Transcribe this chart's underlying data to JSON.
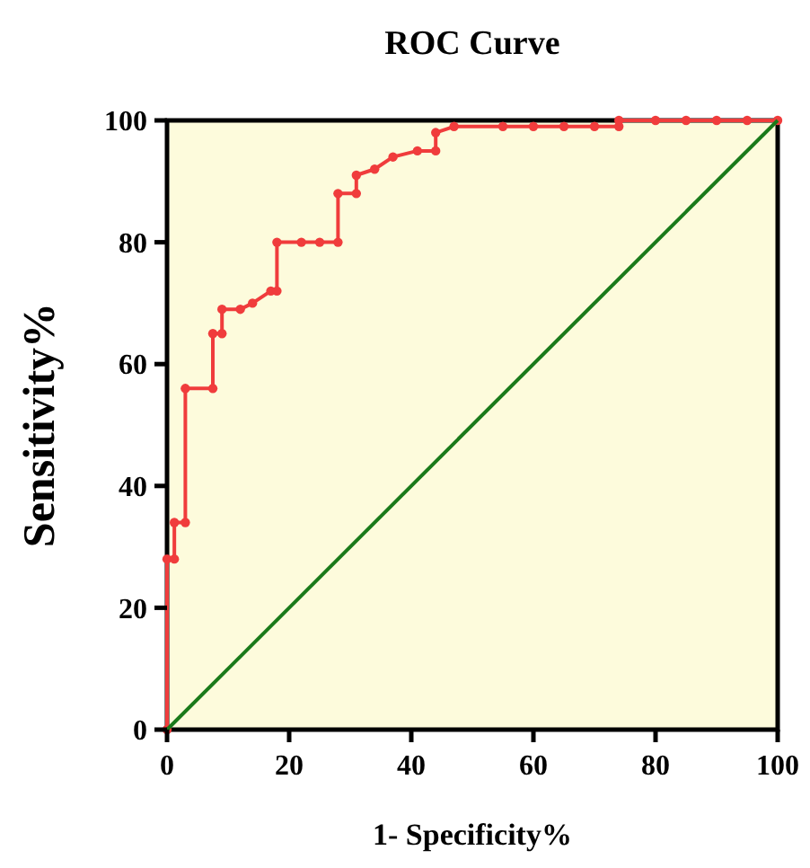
{
  "chart_data": {
    "type": "line",
    "title": "ROC Curve",
    "xlabel": "1- Specificity%",
    "ylabel": "Sensitivity%",
    "xlim": [
      0,
      100
    ],
    "ylim": [
      0,
      100
    ],
    "xticks": [
      0,
      20,
      40,
      60,
      80,
      100
    ],
    "yticks": [
      0,
      20,
      40,
      60,
      80,
      100
    ],
    "grid": false,
    "series": [
      {
        "color": "#f03c3c",
        "marker": "circle",
        "x": [
          0,
          0,
          1.2,
          1.2,
          3,
          3,
          7.5,
          7.5,
          9,
          9,
          12,
          14,
          17,
          18,
          18,
          22,
          25,
          28,
          28,
          31,
          31,
          34,
          37,
          41,
          44,
          44,
          47,
          55,
          60,
          65,
          70,
          74,
          74,
          80,
          85,
          90,
          95,
          100
        ],
        "values": [
          0,
          28,
          28,
          34,
          34,
          56,
          56,
          65,
          65,
          69,
          69,
          70,
          72,
          72,
          80,
          80,
          80,
          80,
          88,
          88,
          91,
          92,
          94,
          95,
          95,
          98,
          99,
          99,
          99,
          99,
          99,
          99,
          100,
          100,
          100,
          100,
          100,
          100
        ]
      },
      {
        "color": "#1a7a1a",
        "marker": "none",
        "x": [
          0,
          100
        ],
        "values": [
          0,
          100
        ]
      }
    ]
  }
}
